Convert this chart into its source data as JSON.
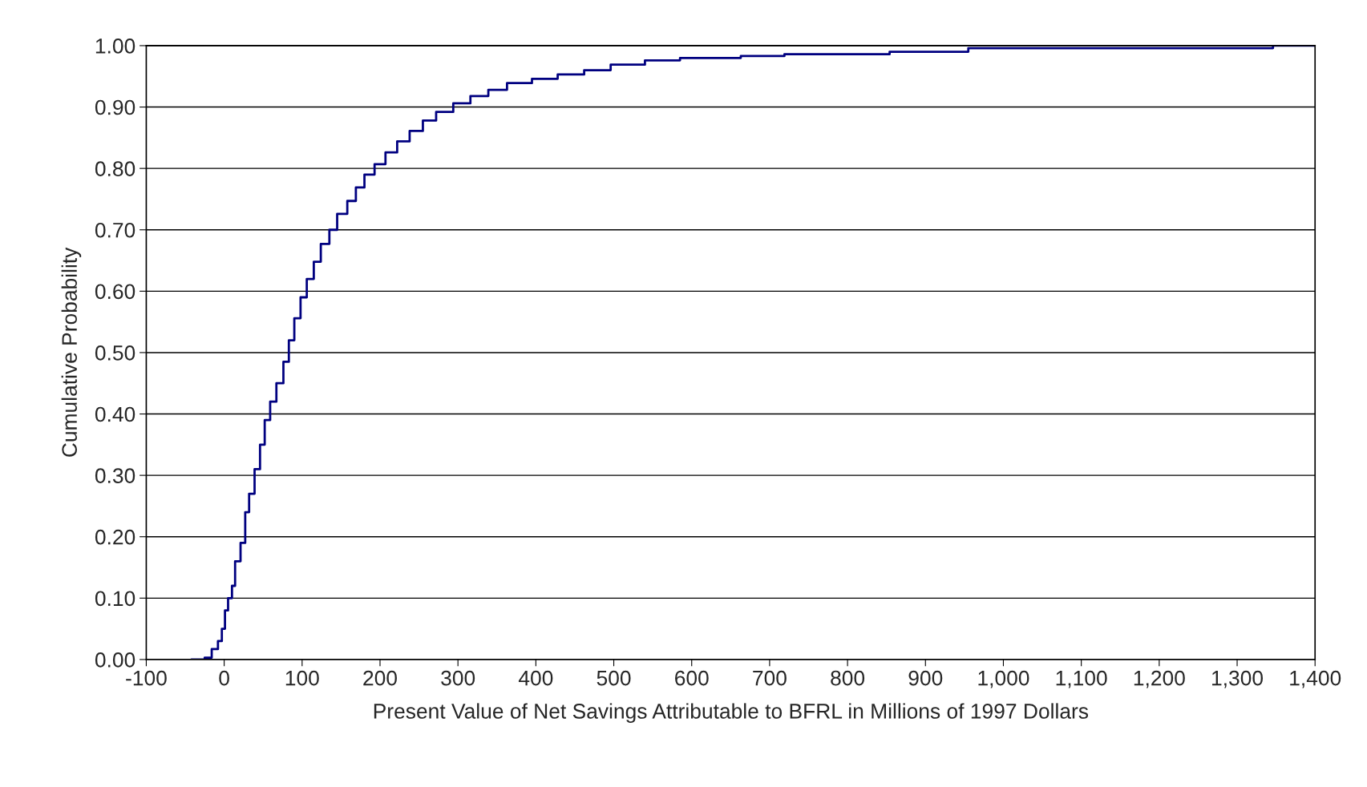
{
  "chart_data": {
    "type": "step",
    "xlabel": "Present Value of Net Savings Attributable to BFRL in Millions of 1997 Dollars",
    "ylabel": "Cumulative Probability",
    "x": [
      -42,
      -25,
      -16,
      -8,
      -3,
      1,
      5,
      10,
      14,
      21,
      27,
      32,
      39,
      46,
      52,
      59,
      67,
      76,
      83,
      90,
      98,
      106,
      115,
      124,
      135,
      145,
      158,
      169,
      180,
      193,
      207,
      222,
      238,
      255,
      272,
      294,
      316,
      339,
      363,
      395,
      428,
      462,
      496,
      540,
      585,
      663,
      719,
      854,
      955,
      1346,
      1400
    ],
    "series": [
      {
        "color": "#000080",
        "values": [
          0,
          0.003,
          0.017,
          0.03,
          0.05,
          0.08,
          0.1,
          0.12,
          0.16,
          0.19,
          0.24,
          0.27,
          0.31,
          0.35,
          0.39,
          0.42,
          0.45,
          0.485,
          0.52,
          0.556,
          0.59,
          0.62,
          0.648,
          0.677,
          0.7,
          0.726,
          0.747,
          0.769,
          0.79,
          0.807,
          0.826,
          0.844,
          0.861,
          0.878,
          0.892,
          0.906,
          0.918,
          0.928,
          0.939,
          0.946,
          0.953,
          0.96,
          0.969,
          0.976,
          0.98,
          0.983,
          0.986,
          0.99,
          0.996,
          1.0,
          1.0
        ]
      }
    ],
    "xlim": [
      -100,
      1400
    ],
    "xticks": [
      -100,
      0,
      100,
      200,
      300,
      400,
      500,
      600,
      700,
      800,
      900,
      {
        "value": 1000,
        "label": "1,000"
      },
      {
        "value": 1100,
        "label": "1,100"
      },
      {
        "value": 1200,
        "label": "1,200"
      },
      {
        "value": 1300,
        "label": "1,300"
      },
      {
        "value": 1400,
        "label": "1,400"
      }
    ],
    "ylim": [
      0,
      1
    ],
    "yticks": [
      {
        "value": 0,
        "label": "0.00"
      },
      {
        "value": 0.1,
        "label": "0.10"
      },
      {
        "value": 0.2,
        "label": "0.20"
      },
      {
        "value": 0.3,
        "label": "0.30"
      },
      {
        "value": 0.4,
        "label": "0.40"
      },
      {
        "value": 0.5,
        "label": "0.50"
      },
      {
        "value": 0.6,
        "label": "0.60"
      },
      {
        "value": 0.7,
        "label": "0.70"
      },
      {
        "value": 0.8,
        "label": "0.80"
      },
      {
        "value": 0.9,
        "label": "0.90"
      },
      {
        "value": 1.0,
        "label": "1.00"
      }
    ],
    "grid": "y",
    "line_style": "solid"
  }
}
